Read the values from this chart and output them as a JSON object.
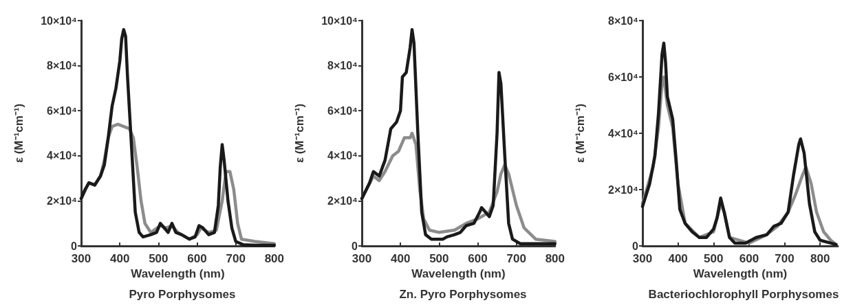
{
  "chart_data": [
    {
      "type": "line",
      "title": "Pyro Porphysomes",
      "xlabel": "Wavelength (nm)",
      "ylabel": "ε (M⁻¹cm⁻¹)",
      "xlim": [
        300,
        800
      ],
      "xticks": [
        300,
        400,
        500,
        600,
        700,
        800
      ],
      "ylim": [
        0,
        100000
      ],
      "yticks": [
        {
          "value": 0,
          "label": "0"
        },
        {
          "value": 20000,
          "label": "2×10⁴"
        },
        {
          "value": 40000,
          "label": "4×10⁴"
        },
        {
          "value": 60000,
          "label": "6×10⁴"
        },
        {
          "value": 80000,
          "label": "8×10⁴"
        },
        {
          "value": 100000,
          "label": "10×10⁴"
        }
      ],
      "marker": "none",
      "line_style": "solid",
      "series": [
        {
          "color": "#8c8c8c",
          "x": [
            300,
            320,
            335,
            350,
            360,
            370,
            380,
            395,
            410,
            425,
            435,
            445,
            455,
            465,
            480,
            505,
            520,
            535,
            550,
            580,
            600,
            610,
            630,
            650,
            665,
            675,
            685,
            695,
            705,
            715,
            750,
            800
          ],
          "values": [
            21000,
            28000,
            27000,
            31000,
            38000,
            48000,
            53000,
            54000,
            53000,
            52000,
            48000,
            35000,
            20000,
            10000,
            6000,
            9000,
            8000,
            9000,
            6000,
            3000,
            5000,
            8000,
            6000,
            7000,
            20000,
            33000,
            33000,
            25000,
            10000,
            3000,
            2000,
            1000
          ]
        },
        {
          "color": "#1a1a1a",
          "x": [
            300,
            310,
            320,
            335,
            350,
            360,
            370,
            380,
            390,
            400,
            405,
            410,
            415,
            420,
            430,
            440,
            450,
            460,
            480,
            495,
            505,
            515,
            525,
            535,
            545,
            560,
            580,
            595,
            605,
            615,
            630,
            645,
            655,
            660,
            665,
            670,
            680,
            690,
            700,
            720,
            750,
            800
          ],
          "values": [
            21000,
            25000,
            28000,
            27000,
            31000,
            36000,
            48000,
            62000,
            70000,
            82000,
            92000,
            96000,
            93000,
            75000,
            45000,
            15000,
            6000,
            4000,
            5000,
            6000,
            10000,
            8000,
            6000,
            10000,
            6000,
            5000,
            3000,
            4000,
            9000,
            8000,
            5000,
            6000,
            18000,
            35000,
            45000,
            38000,
            20000,
            8000,
            2000,
            500,
            300,
            300
          ]
        }
      ]
    },
    {
      "type": "line",
      "title": "Zn. Pyro Porphysomes",
      "xlabel": "Wavelength (nm)",
      "ylabel": "ε (M⁻¹cm⁻¹)",
      "xlim": [
        300,
        800
      ],
      "xticks": [
        300,
        400,
        500,
        600,
        700,
        800
      ],
      "ylim": [
        0,
        100000
      ],
      "yticks": [
        {
          "value": 0,
          "label": "0"
        },
        {
          "value": 20000,
          "label": "2×10⁴"
        },
        {
          "value": 40000,
          "label": "4×10⁴"
        },
        {
          "value": 60000,
          "label": "6×10⁴"
        },
        {
          "value": 80000,
          "label": "8×10⁴"
        },
        {
          "value": 100000,
          "label": "10×10⁴"
        }
      ],
      "marker": "none",
      "line_style": "solid",
      "series": [
        {
          "color": "#8c8c8c",
          "x": [
            300,
            330,
            345,
            360,
            380,
            395,
            410,
            425,
            430,
            440,
            450,
            460,
            475,
            500,
            540,
            570,
            600,
            630,
            650,
            660,
            670,
            680,
            700,
            720,
            750,
            800
          ],
          "values": [
            21000,
            31000,
            29000,
            33000,
            40000,
            42000,
            48000,
            48000,
            50000,
            45000,
            25000,
            12000,
            7000,
            6000,
            7000,
            10000,
            12000,
            15000,
            24000,
            32000,
            36000,
            32000,
            18000,
            8000,
            3000,
            2000
          ]
        },
        {
          "color": "#1a1a1a",
          "x": [
            300,
            320,
            330,
            345,
            360,
            375,
            390,
            400,
            405,
            415,
            425,
            430,
            435,
            445,
            455,
            465,
            480,
            510,
            520,
            540,
            555,
            570,
            590,
            605,
            610,
            620,
            630,
            640,
            650,
            655,
            660,
            670,
            680,
            690,
            710,
            800
          ],
          "values": [
            21000,
            28000,
            33000,
            31000,
            38000,
            52000,
            55000,
            60000,
            75000,
            77000,
            88000,
            96000,
            90000,
            50000,
            15000,
            5000,
            3000,
            3000,
            4000,
            5000,
            6000,
            9000,
            10000,
            15000,
            17000,
            15000,
            13000,
            18000,
            50000,
            77000,
            72000,
            40000,
            10000,
            3000,
            1000,
            1000
          ]
        }
      ]
    },
    {
      "type": "line",
      "title": "Bacteriochlorophyll Porphysomes",
      "xlabel": "Wavelength (nm)",
      "ylabel": "ε (M⁻¹cm⁻¹)",
      "xlim": [
        300,
        850
      ],
      "xticks": [
        300,
        400,
        500,
        600,
        700,
        800
      ],
      "ylim": [
        0,
        80000
      ],
      "yticks": [
        {
          "value": 0,
          "label": "0"
        },
        {
          "value": 20000,
          "label": "2×10⁴"
        },
        {
          "value": 40000,
          "label": "4×10⁴"
        },
        {
          "value": 60000,
          "label": "6×10⁴"
        },
        {
          "value": 80000,
          "label": "8×10⁴"
        }
      ],
      "marker": "none",
      "line_style": "solid",
      "series": [
        {
          "color": "#8c8c8c",
          "x": [
            300,
            330,
            345,
            355,
            360,
            370,
            385,
            400,
            420,
            460,
            500,
            520,
            530,
            545,
            600,
            650,
            680,
            710,
            730,
            750,
            760,
            775,
            790,
            810,
            830,
            845
          ],
          "values": [
            15000,
            28000,
            42000,
            58000,
            60000,
            50000,
            42000,
            22000,
            8000,
            3000,
            5000,
            15000,
            12000,
            3000,
            1000,
            4000,
            7000,
            12000,
            18000,
            25000,
            28000,
            22000,
            12000,
            5000,
            2000,
            500
          ]
        },
        {
          "color": "#1a1a1a",
          "x": [
            300,
            320,
            335,
            345,
            355,
            360,
            365,
            370,
            385,
            395,
            405,
            420,
            440,
            460,
            480,
            500,
            510,
            520,
            530,
            545,
            560,
            590,
            620,
            650,
            670,
            690,
            710,
            725,
            740,
            745,
            755,
            770,
            785,
            800,
            830,
            845
          ],
          "values": [
            14000,
            22000,
            32000,
            47000,
            68000,
            72000,
            65000,
            53000,
            45000,
            30000,
            13000,
            8000,
            5000,
            3000,
            3000,
            6000,
            10000,
            17000,
            12000,
            3000,
            1000,
            1000,
            3000,
            4000,
            7000,
            8000,
            12000,
            25000,
            36000,
            38000,
            33000,
            15000,
            5000,
            2000,
            1000,
            500
          ]
        }
      ]
    }
  ]
}
